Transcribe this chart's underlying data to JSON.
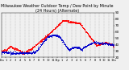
{
  "title": "Milwaukee Weather Outdoor Temp / Dew Point by Minute (24 Hours) (Alternate)",
  "title_fontsize": 3.5,
  "bg_color": "#f0f0f0",
  "plot_bg": "#f0f0f0",
  "temp_color": "#ff0000",
  "dew_color": "#0000cc",
  "marker_size": 0.4,
  "ylim": [
    20,
    90
  ],
  "ytick_fontsize": 3.0,
  "xtick_fontsize": 2.5,
  "grid_color": "#888888",
  "xtick_positions": [
    0,
    60,
    120,
    180,
    240,
    300,
    360,
    420,
    480,
    540,
    600,
    660,
    720,
    780,
    840,
    900,
    960,
    1020,
    1080,
    1140,
    1200,
    1260,
    1320,
    1380,
    1439
  ],
  "xtick_labels": [
    "12a",
    "1",
    "2",
    "3",
    "4",
    "5",
    "6",
    "7",
    "8",
    "9",
    "10",
    "11",
    "12p",
    "1",
    "2",
    "3",
    "4",
    "5",
    "6",
    "7",
    "8",
    "9",
    "10",
    "11",
    "12a"
  ],
  "right_yticks": [
    20,
    30,
    40,
    50,
    60,
    70,
    80,
    90
  ]
}
